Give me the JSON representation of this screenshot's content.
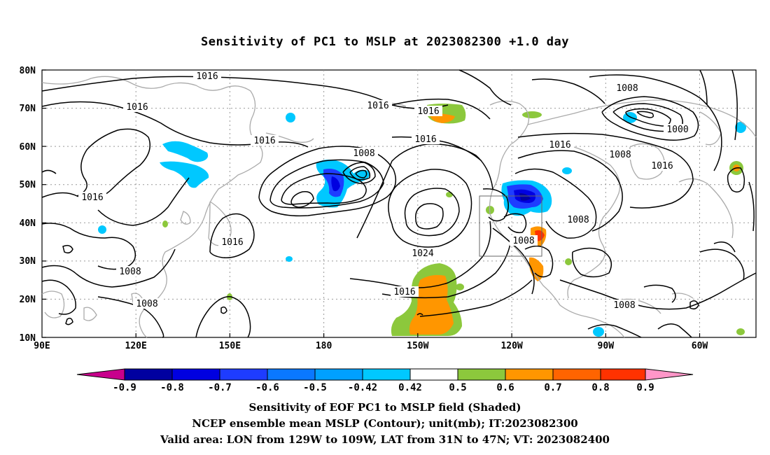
{
  "title": "Sensitivity of PC1 to MSLP at 2023082300 +1.0 day",
  "map": {
    "lat_labels": [
      "80N",
      "70N",
      "60N",
      "50N",
      "40N",
      "30N",
      "20N",
      "10N"
    ],
    "lon_labels": [
      "90E",
      "120E",
      "150E",
      "180",
      "150W",
      "120W",
      "90W",
      "60W"
    ],
    "contour_labels": [
      "1016",
      "1016",
      "1016",
      "1016",
      "1016",
      "1016",
      "1016",
      "1016",
      "1016",
      "1016",
      "1016",
      "1008",
      "1008",
      "1008",
      "1008",
      "1008",
      "1008",
      "1008",
      "1008",
      "1000",
      "1024"
    ],
    "valid_box": {
      "lon_west": "129W",
      "lon_east": "109W",
      "lat_south": "31N",
      "lat_north": "47N"
    }
  },
  "colorbar": {
    "labels": [
      "-0.9",
      "-0.8",
      "-0.7",
      "-0.6",
      "-0.5",
      "-0.42",
      "0.42",
      "0.5",
      "0.6",
      "0.7",
      "0.8",
      "0.9"
    ],
    "colors": [
      "#c8008c",
      "#0000a0",
      "#0000e0",
      "#1e3cff",
      "#0a78ff",
      "#00a0ff",
      "#00c8ff",
      "#ffffff",
      "#8cc83c",
      "#ff9600",
      "#ff6400",
      "#ff3200",
      "#ff0000",
      "#ff96c8"
    ]
  },
  "footer": {
    "line1": "Sensitivity of EOF PC1 to MSLP field (Shaded)",
    "line2": "NCEP ensemble mean MSLP (Contour); unit(mb); IT:2023082300",
    "line3": "Valid area: LON from 129W to 109W, LAT from 31N to 47N; VT: 2023082400"
  }
}
